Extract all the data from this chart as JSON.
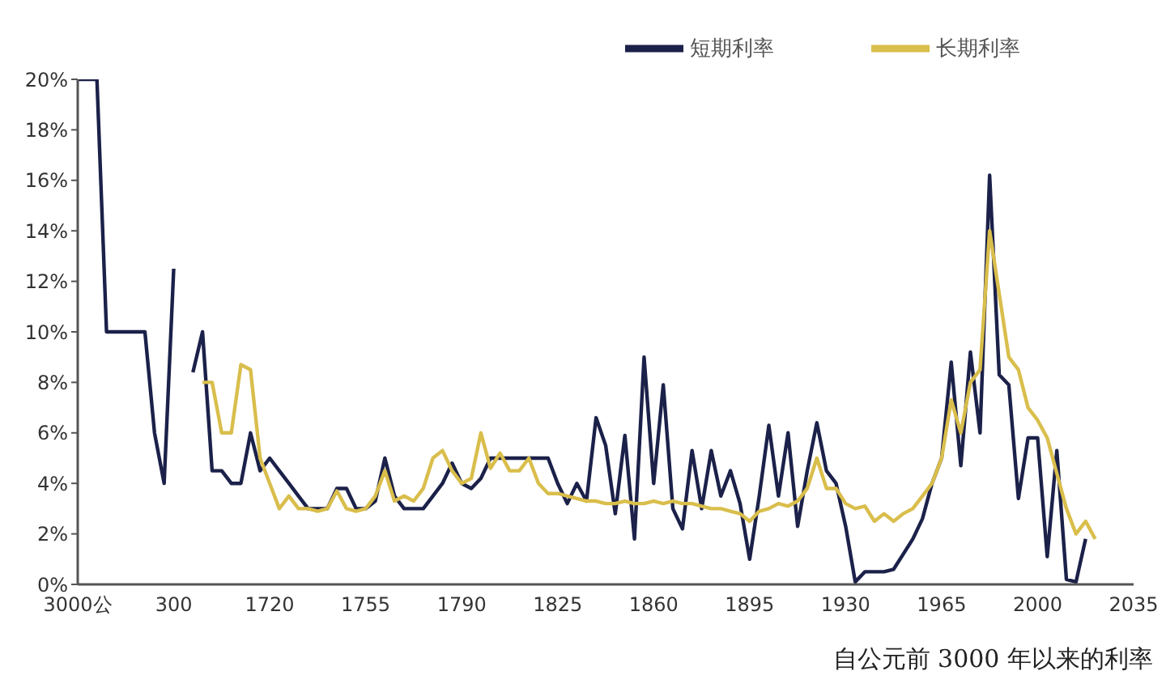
{
  "chart_data": {
    "type": "line",
    "annotations": [
      "自公元前 3000 年以来的利率"
    ],
    "categories": [
      "3000公",
      null,
      null,
      null,
      null,
      null,
      null,
      null,
      null,
      null,
      "300",
      null,
      null,
      null,
      null,
      null,
      null,
      null,
      null,
      null,
      "1720",
      null,
      null,
      null,
      null,
      null,
      null,
      null,
      null,
      null,
      "1755",
      null,
      null,
      null,
      null,
      null,
      null,
      null,
      null,
      null,
      "1790",
      null,
      null,
      null,
      null,
      null,
      null,
      null,
      null,
      null,
      "1825",
      null,
      null,
      null,
      null,
      null,
      null,
      null,
      null,
      null,
      "1860",
      null,
      null,
      null,
      null,
      null,
      null,
      null,
      null,
      null,
      "1895",
      null,
      null,
      null,
      null,
      null,
      null,
      null,
      null,
      null,
      "1930",
      null,
      null,
      null,
      null,
      null,
      null,
      null,
      null,
      null,
      "1965",
      null,
      null,
      null,
      null,
      null,
      null,
      null,
      null,
      null,
      "2000",
      null,
      null,
      null,
      null,
      null,
      null,
      null,
      null,
      null,
      "2035"
    ],
    "series": [
      {
        "name": "短期利率",
        "color": "#1b2149",
        "values": [
          20,
          20,
          20,
          10,
          10,
          10,
          10,
          10,
          6,
          4,
          12.5,
          null,
          8.4,
          10,
          4.5,
          4.5,
          4,
          4,
          6,
          4.5,
          5,
          4.5,
          4,
          3.5,
          3,
          3,
          3,
          3.8,
          3.8,
          3,
          3,
          3.3,
          5,
          3.5,
          3,
          3,
          3,
          3.5,
          4,
          4.8,
          4,
          3.8,
          4.2,
          5,
          5,
          5,
          5,
          5,
          5,
          5,
          4,
          3.2,
          4,
          3.3,
          6.6,
          5.5,
          2.8,
          5.9,
          1.8,
          9,
          4,
          7.9,
          3,
          2.2,
          5.3,
          3,
          5.3,
          3.5,
          4.5,
          3.2,
          1,
          3.5,
          6.3,
          3.5,
          6,
          2.3,
          4.5,
          6.4,
          4.5,
          4,
          2.3,
          0.1,
          0.5,
          0.5,
          0.5,
          0.6,
          1.2,
          1.8,
          2.6,
          4,
          5,
          8.8,
          4.7,
          9.2,
          6,
          16.2,
          8.3,
          7.9,
          3.4,
          5.8,
          5.8,
          1.1,
          5.3,
          0.2,
          0.1,
          1.8,
          null,
          null,
          null,
          null,
          null
        ]
      },
      {
        "name": "长期利率",
        "color": "#d9be4c",
        "values": [
          null,
          null,
          null,
          null,
          null,
          null,
          null,
          null,
          null,
          null,
          null,
          null,
          null,
          8,
          8,
          6,
          6,
          8.7,
          8.5,
          5,
          4,
          3,
          3.5,
          3,
          3,
          2.9,
          3,
          3.7,
          3,
          2.9,
          3,
          3.5,
          4.5,
          3.3,
          3.5,
          3.3,
          3.8,
          5,
          5.3,
          4.5,
          4,
          4.2,
          6,
          4.6,
          5.2,
          4.5,
          4.5,
          5,
          4,
          3.6,
          3.6,
          3.5,
          3.4,
          3.3,
          3.3,
          3.2,
          3.2,
          3.3,
          3.2,
          3.2,
          3.3,
          3.2,
          3.3,
          3.2,
          3.2,
          3.1,
          3,
          3,
          2.9,
          2.8,
          2.5,
          2.9,
          3,
          3.2,
          3.1,
          3.3,
          3.8,
          5,
          3.8,
          3.8,
          3.2,
          3,
          3.1,
          2.5,
          2.8,
          2.5,
          2.8,
          3,
          3.5,
          4,
          5,
          7.3,
          6,
          8,
          8.5,
          14,
          11.5,
          9,
          8.5,
          7,
          6.5,
          5.8,
          4.4,
          3,
          2,
          2.5,
          1.8,
          null,
          null,
          null,
          null
        ]
      }
    ],
    "ylim": [
      0,
      20
    ],
    "yticks": [
      {
        "value": 0,
        "label": "0%"
      },
      {
        "value": 2,
        "label": "2%"
      },
      {
        "value": 4,
        "label": "4%"
      },
      {
        "value": 6,
        "label": "6%"
      },
      {
        "value": 8,
        "label": "8%"
      },
      {
        "value": 10,
        "label": "10%"
      },
      {
        "value": 12,
        "label": "12%"
      },
      {
        "value": 14,
        "label": "14%"
      },
      {
        "value": 16,
        "label": "16%"
      },
      {
        "value": 18,
        "label": "18%"
      },
      {
        "value": 20,
        "label": "20%"
      }
    ],
    "legend": "top right",
    "grid": false,
    "marker": "none",
    "line_style": "solid"
  }
}
